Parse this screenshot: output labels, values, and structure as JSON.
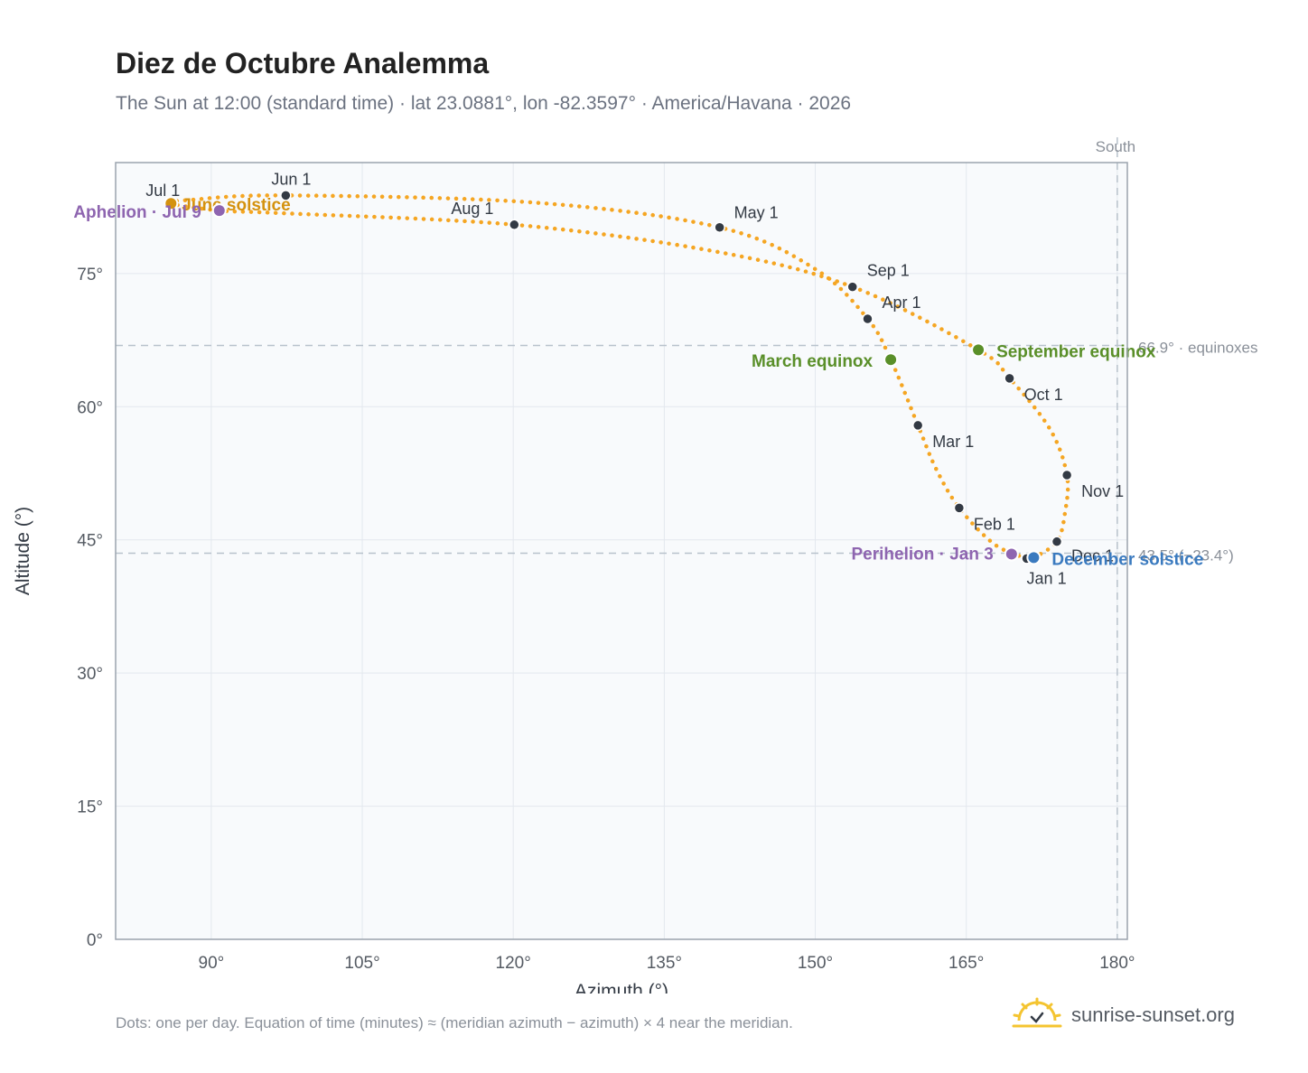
{
  "header": {
    "title": "Diez de Octubre Analemma",
    "subtitle": "The Sun at 12:00 (standard time) · lat 23.0881°, lon -82.3597° · America/Havana · 2026"
  },
  "footer": {
    "note": "Dots: one per day. Equation of time (minutes) ≈ (meridian azimuth − azimuth) × 4 near the meridian.",
    "brand": "sunrise-sunset.org"
  },
  "colors": {
    "path": "#f5a623",
    "month_dot": "#333a44",
    "equinox": "#5a8f29",
    "solstice_june": "#d4920f",
    "solstice_december": "#3a7abf",
    "apsis": "#8e65b0",
    "plot_bg": "#f8fafc",
    "grid": "#e3e8ee",
    "reference_line": "#b8c2cc"
  },
  "chart_data": {
    "type": "scatter",
    "xlabel": "Azimuth (°)",
    "ylabel": "Altitude (°)",
    "xlim": [
      80.5,
      181
    ],
    "ylim": [
      0,
      87.5
    ],
    "xticks": [
      90,
      105,
      120,
      135,
      150,
      165,
      180
    ],
    "yticks": [
      0,
      15,
      30,
      45,
      60,
      75
    ],
    "xtick_labels": [
      "90°",
      "105°",
      "120°",
      "135°",
      "150°",
      "165°",
      "180°"
    ],
    "ytick_labels": [
      "0°",
      "15°",
      "30°",
      "45°",
      "60°",
      "75°"
    ],
    "grid": true,
    "meridian": {
      "azimuth": 180,
      "label": "South"
    },
    "reference_lines": [
      {
        "altitude": 66.9,
        "label": "66.9° · equinoxes"
      },
      {
        "altitude": 43.5,
        "label": "43.5° (−23.4°)"
      }
    ],
    "months": [
      {
        "label": "Jan 1",
        "azimuth": 171.0,
        "altitude": 42.9
      },
      {
        "label": "Feb 1",
        "azimuth": 164.3,
        "altitude": 48.6
      },
      {
        "label": "Mar 1",
        "azimuth": 160.2,
        "altitude": 57.9
      },
      {
        "label": "Apr 1",
        "azimuth": 155.2,
        "altitude": 69.9
      },
      {
        "label": "May 1",
        "azimuth": 140.5,
        "altitude": 80.2
      },
      {
        "label": "Jun 1",
        "azimuth": 97.4,
        "altitude": 83.8
      },
      {
        "label": "Jul 1",
        "azimuth": 86.0,
        "altitude": 82.9
      },
      {
        "label": "Aug 1",
        "azimuth": 120.1,
        "altitude": 80.5
      },
      {
        "label": "Sep 1",
        "azimuth": 153.7,
        "altitude": 73.5
      },
      {
        "label": "Oct 1",
        "azimuth": 169.3,
        "altitude": 63.2
      },
      {
        "label": "Nov 1",
        "azimuth": 175.0,
        "altitude": 52.3
      },
      {
        "label": "Dec 1",
        "azimuth": 174.0,
        "altitude": 44.8
      }
    ],
    "events": [
      {
        "label": "March equinox",
        "azimuth": 157.5,
        "altitude": 65.3,
        "kind": "equinox"
      },
      {
        "label": "June solstice",
        "azimuth": 86.0,
        "altitude": 82.9,
        "kind": "solstice_june"
      },
      {
        "label": "September equinox",
        "azimuth": 166.2,
        "altitude": 66.4,
        "kind": "equinox"
      },
      {
        "label": "December solstice",
        "azimuth": 171.7,
        "altitude": 43.0,
        "kind": "solstice_december"
      },
      {
        "label": "Perihelion · Jan 3",
        "azimuth": 169.5,
        "altitude": 43.4,
        "kind": "apsis"
      },
      {
        "label": "Aphelion · Jul 9",
        "azimuth": 90.8,
        "altitude": 82.1,
        "kind": "apsis"
      }
    ],
    "analemma_path": [
      {
        "date": "Jan 1",
        "azimuth": 171.0,
        "altitude": 42.9
      },
      {
        "date": "Jan 15",
        "azimuth": 167.8,
        "altitude": 44.5
      },
      {
        "date": "Feb 1",
        "azimuth": 164.3,
        "altitude": 48.6
      },
      {
        "date": "Feb 15",
        "azimuth": 162.0,
        "altitude": 53.0
      },
      {
        "date": "Mar 1",
        "azimuth": 160.2,
        "altitude": 57.9
      },
      {
        "date": "Mar 20",
        "azimuth": 157.5,
        "altitude": 65.3
      },
      {
        "date": "Apr 1",
        "azimuth": 155.2,
        "altitude": 69.9
      },
      {
        "date": "Apr 15",
        "azimuth": 150.0,
        "altitude": 75.5
      },
      {
        "date": "May 1",
        "azimuth": 140.5,
        "altitude": 80.2
      },
      {
        "date": "May 15",
        "azimuth": 122.0,
        "altitude": 83.0
      },
      {
        "date": "Jun 1",
        "azimuth": 97.4,
        "altitude": 83.8
      },
      {
        "date": "Jun 15",
        "azimuth": 88.0,
        "altitude": 83.3
      },
      {
        "date": "Jul 1",
        "azimuth": 86.0,
        "altitude": 82.9
      },
      {
        "date": "Jul 9",
        "azimuth": 90.8,
        "altitude": 82.1
      },
      {
        "date": "Jul 15",
        "azimuth": 97.0,
        "altitude": 81.8
      },
      {
        "date": "Aug 1",
        "azimuth": 120.1,
        "altitude": 80.5
      },
      {
        "date": "Aug 15",
        "azimuth": 140.0,
        "altitude": 77.5
      },
      {
        "date": "Sep 1",
        "azimuth": 153.7,
        "altitude": 73.5
      },
      {
        "date": "Sep 22",
        "azimuth": 166.2,
        "altitude": 66.4
      },
      {
        "date": "Oct 1",
        "azimuth": 169.3,
        "altitude": 63.2
      },
      {
        "date": "Oct 15",
        "azimuth": 173.3,
        "altitude": 57.5
      },
      {
        "date": "Nov 1",
        "azimuth": 175.0,
        "altitude": 52.3
      },
      {
        "date": "Nov 15",
        "azimuth": 174.8,
        "altitude": 48.0
      },
      {
        "date": "Dec 1",
        "azimuth": 174.0,
        "altitude": 44.8
      },
      {
        "date": "Dec 21",
        "azimuth": 171.7,
        "altitude": 43.0
      },
      {
        "date": "Dec 31",
        "azimuth": 171.1,
        "altitude": 42.9
      }
    ]
  }
}
